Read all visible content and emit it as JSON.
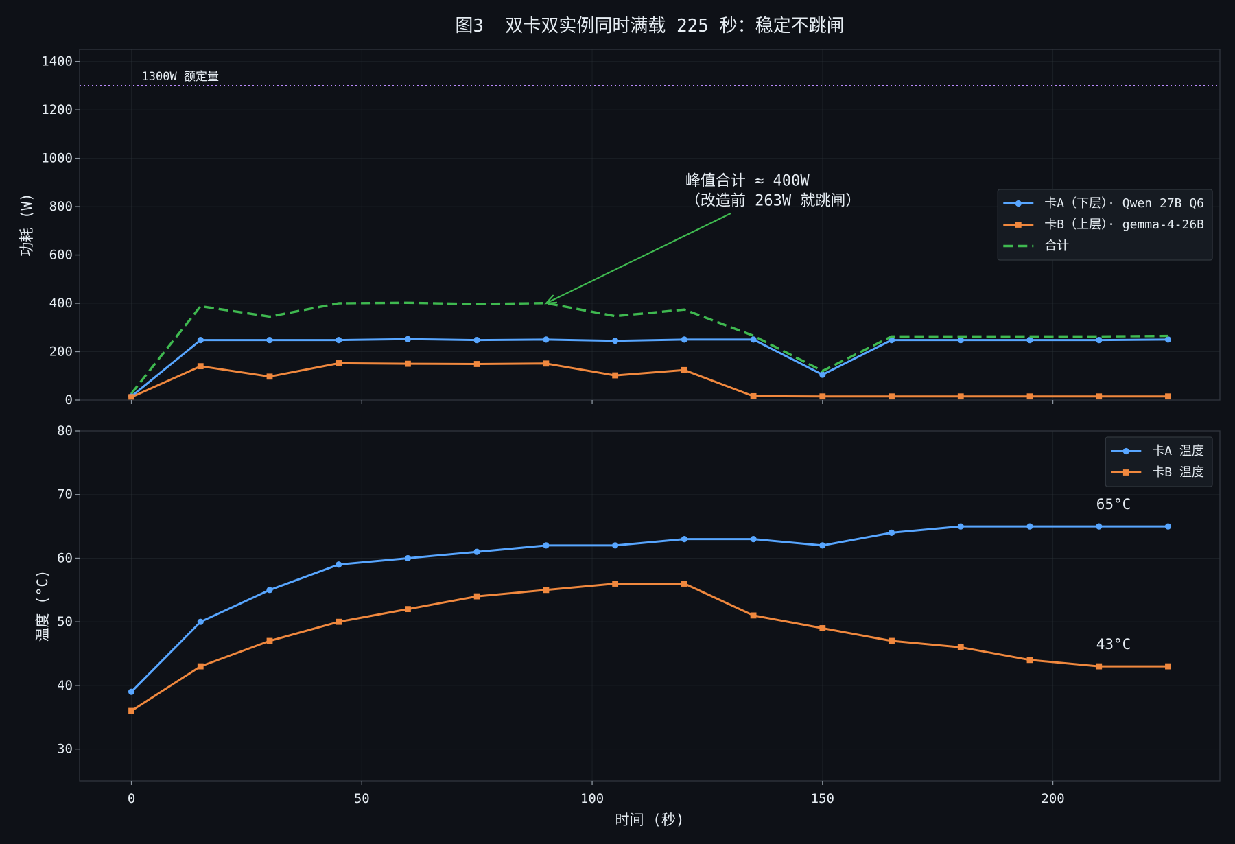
{
  "figure": {
    "title": "图3  双卡双实例同时满载 225 秒：稳定不跳闸"
  },
  "colors": {
    "background": "#0e1117",
    "axes_edge": "#30363d",
    "legend_face": "#161b22",
    "text": "#e6edf3"
  },
  "chart_data": [
    {
      "type": "line",
      "xlabel": "",
      "ylabel": "功耗 (W)",
      "xlim": [
        -11.25,
        236.25
      ],
      "ylim": [
        0,
        1450
      ],
      "xticks": [
        0,
        50,
        100,
        150,
        200
      ],
      "yticks": [
        0,
        200,
        400,
        600,
        800,
        1000,
        1200,
        1400
      ],
      "grid": true,
      "legend": "center-right",
      "x": [
        0,
        15,
        30,
        45,
        60,
        75,
        90,
        105,
        120,
        135,
        150,
        165,
        180,
        195,
        210,
        225
      ],
      "series": [
        {
          "name": "卡A（下层）· Qwen 27B Q6",
          "color": "#58a6ff",
          "values": [
            15,
            248,
            248,
            248,
            252,
            248,
            250,
            245,
            250,
            250,
            105,
            248,
            248,
            248,
            248,
            250
          ]
        },
        {
          "name": "卡B（上层）· gemma-4-26B",
          "color": "#f0883e",
          "values": [
            12,
            140,
            97,
            152,
            150,
            149,
            151,
            102,
            124,
            16,
            15,
            15,
            15,
            15,
            15,
            15
          ]
        },
        {
          "name": "合计",
          "color": "#3fb950",
          "values": [
            27,
            388,
            345,
            400,
            402,
            397,
            401,
            347,
            374,
            266,
            120,
            263,
            263,
            263,
            263,
            265
          ]
        }
      ],
      "reference_lines": [
        {
          "y": 1300,
          "label": "1300W 额定量",
          "color": "#bc8cff"
        }
      ],
      "annotations": [
        {
          "lines": [
            "峰值合计 ≈ 400W",
            "（改造前 263W 就跳闸）"
          ],
          "x": 90,
          "y": 400,
          "color": "#3fb950"
        }
      ]
    },
    {
      "type": "line",
      "xlabel": "时间 (秒)",
      "ylabel": "温度 (°C)",
      "xlim": [
        -11.25,
        236.25
      ],
      "ylim": [
        25,
        80
      ],
      "xticks": [
        0,
        50,
        100,
        150,
        200
      ],
      "yticks": [
        30,
        40,
        50,
        60,
        70,
        80
      ],
      "grid": true,
      "legend": "upper-right",
      "x": [
        0,
        15,
        30,
        45,
        60,
        75,
        90,
        105,
        120,
        135,
        150,
        165,
        180,
        195,
        210,
        225
      ],
      "series": [
        {
          "name": "卡A 温度",
          "color": "#58a6ff",
          "values": [
            39,
            50,
            55,
            59,
            60,
            61,
            62,
            62,
            63,
            63,
            62,
            64,
            65,
            65,
            65,
            65
          ]
        },
        {
          "name": "卡B 温度",
          "color": "#f0883e",
          "values": [
            36,
            43,
            47,
            50,
            52,
            54,
            55,
            56,
            56,
            51,
            49,
            47,
            46,
            44,
            43,
            43
          ]
        }
      ],
      "annotations": [
        {
          "text": "65°C",
          "x": 210,
          "y": 65,
          "color": "#58a6ff"
        },
        {
          "text": "43°C",
          "x": 210,
          "y": 43,
          "color": "#f0883e"
        }
      ]
    }
  ]
}
